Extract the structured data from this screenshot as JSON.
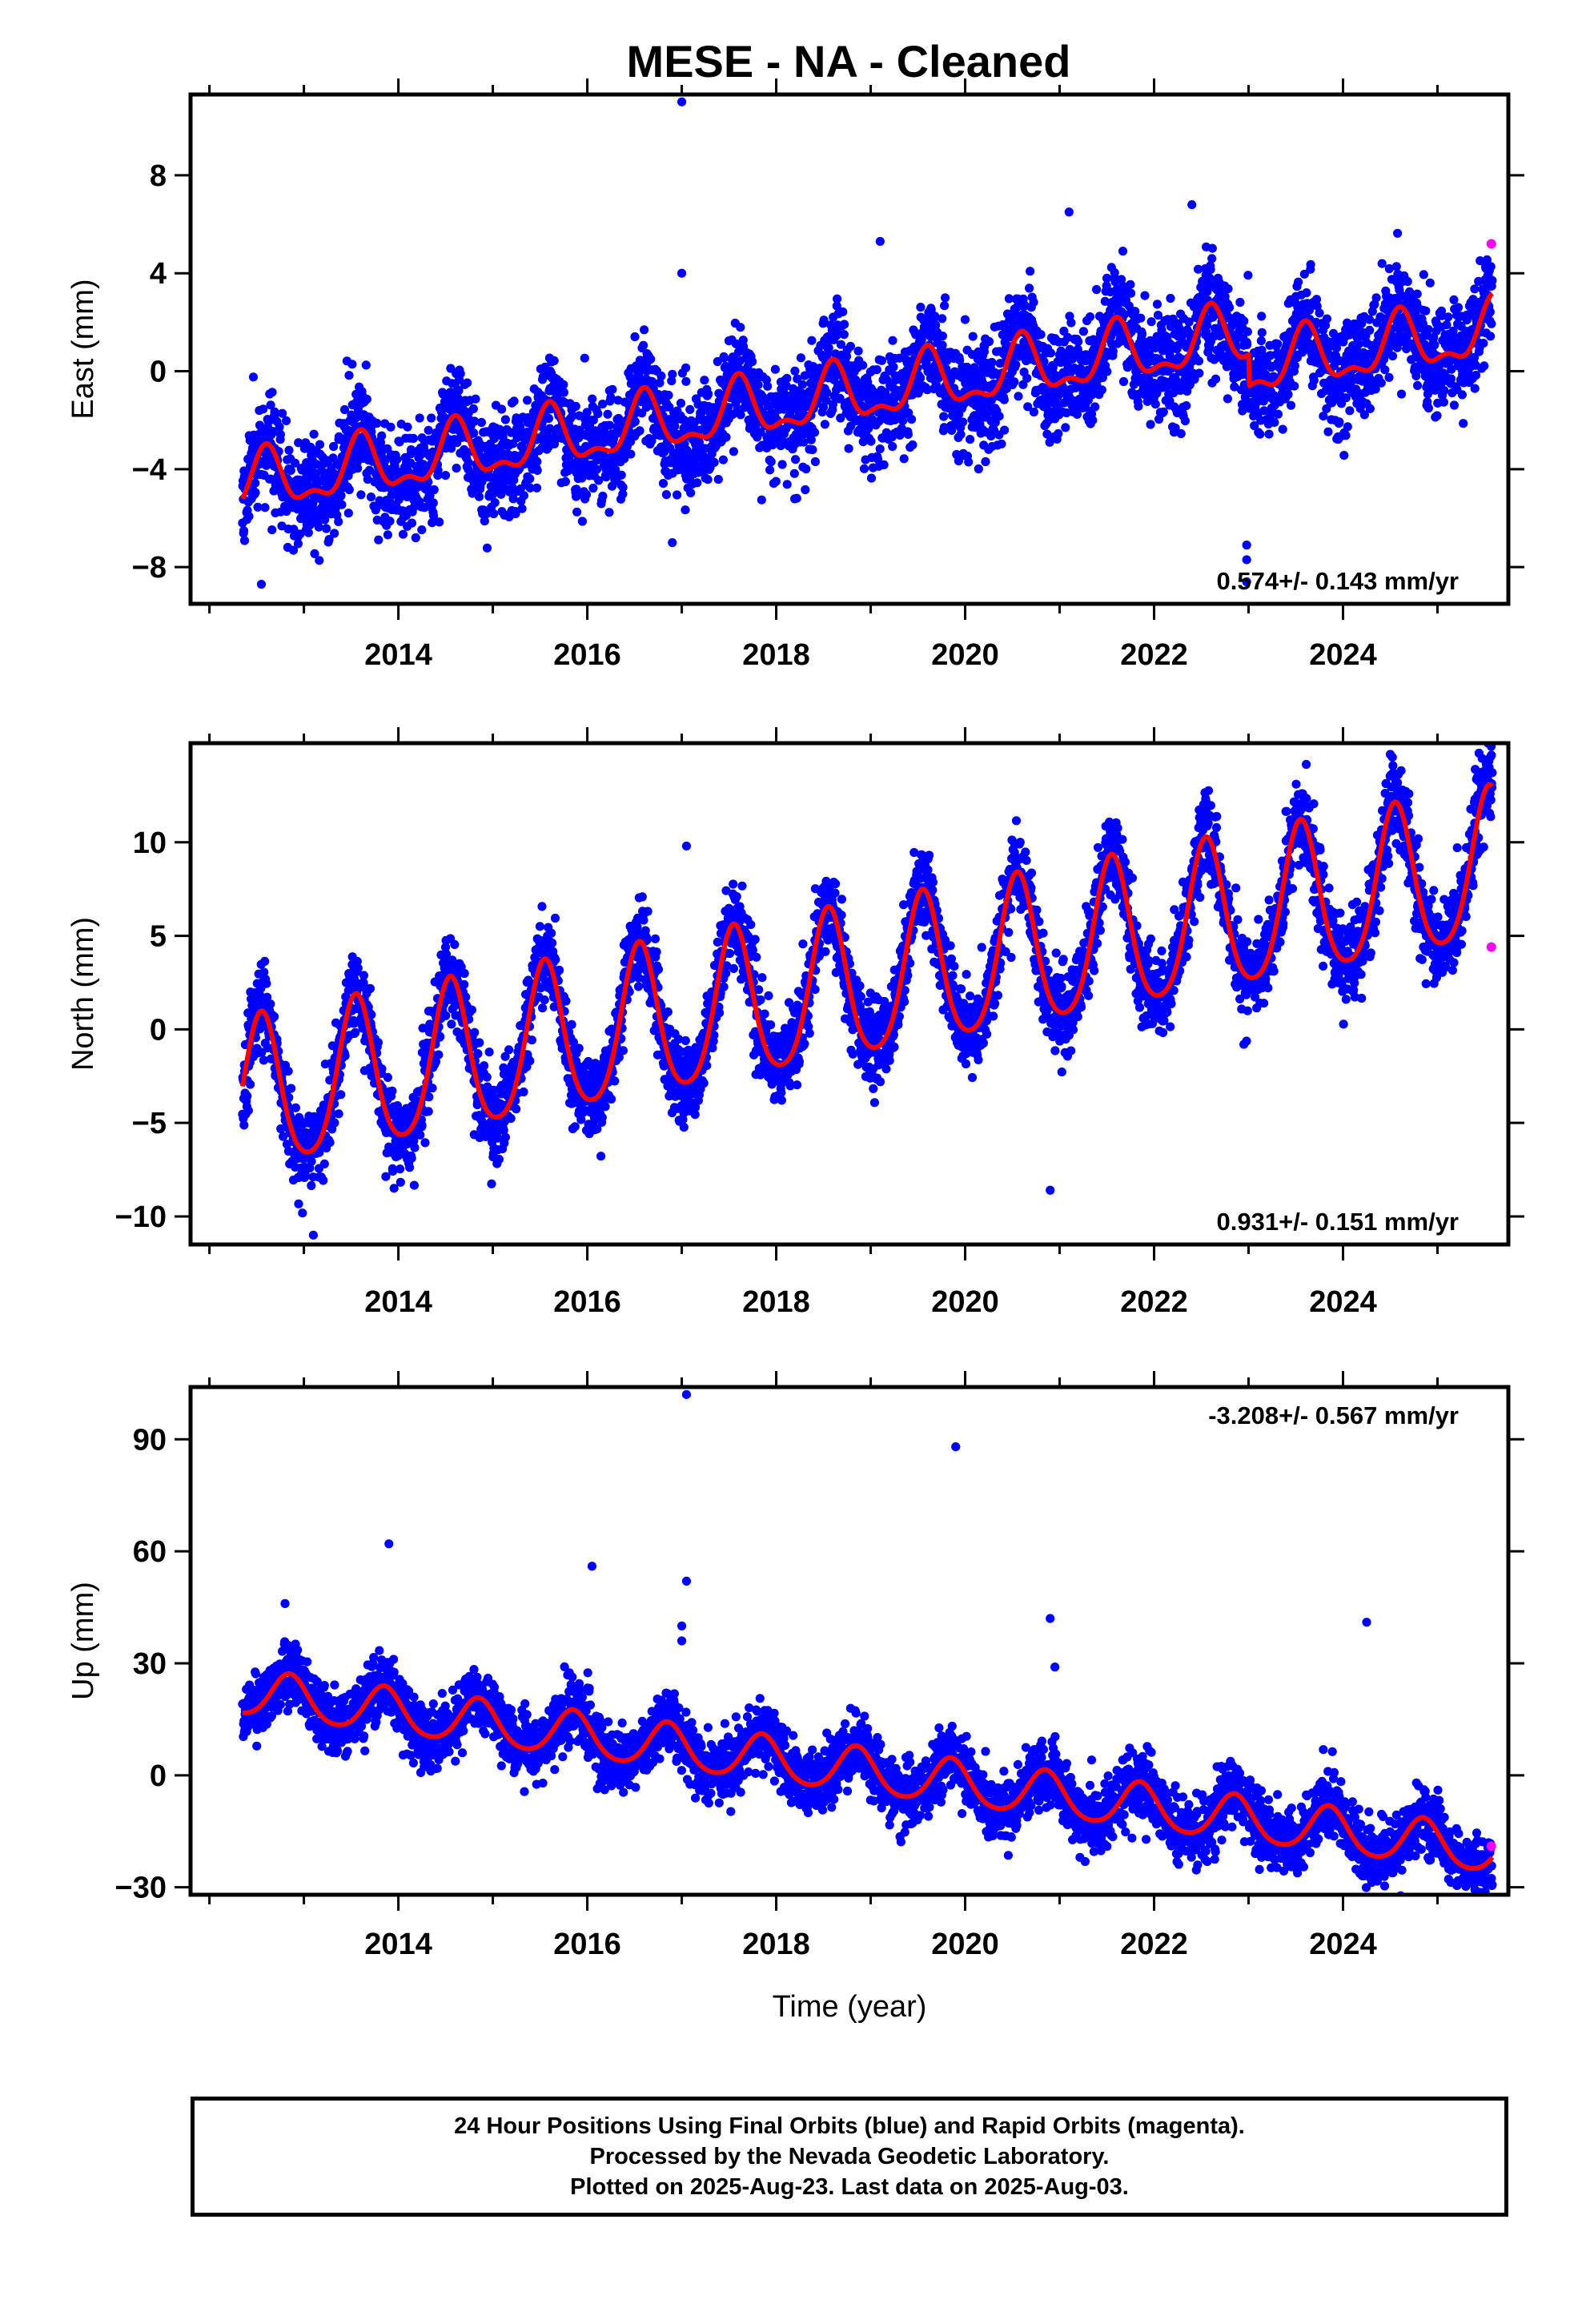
{
  "title": "MESE  - NA - Cleaned",
  "colors": {
    "final_orbits": "#0000ff",
    "rapid_orbits": "#ff00ff",
    "model_fit": "#ff0000",
    "frame": "#000000"
  },
  "chart_data": [
    {
      "type": "scatter",
      "id": "east",
      "ylabel": "East (mm)",
      "xlabel": "",
      "xlim": [
        2011.8,
        2025.75
      ],
      "ylim": [
        -9.5,
        11.3
      ],
      "xticks": [
        2014,
        2016,
        2018,
        2020,
        2022,
        2024
      ],
      "yticks": [
        -8,
        -4,
        0,
        4,
        8
      ],
      "grid": false,
      "rate_label": "0.574+/- 0.143 mm/yr",
      "rate_position": "bottom-right",
      "model": {
        "start_year": 2012.35,
        "end_year": 2025.58,
        "start": -4.7,
        "rate": 0.574,
        "annual_amp": 1.1,
        "annual_phase_peak": 0.6,
        "semiannual_amp": 0.5,
        "offsets": [
          {
            "year": 2023.0,
            "step": -1.3
          }
        ]
      },
      "scatter": {
        "start_year": 2012.35,
        "end_year": 2025.58,
        "noise": 1.05,
        "seed": 11
      },
      "outliers": [
        [
          2017.0,
          11.0
        ],
        [
          2017.0,
          4.0
        ],
        [
          2016.9,
          -7.0
        ],
        [
          2022.98,
          -7.1
        ],
        [
          2022.98,
          -7.7
        ],
        [
          2022.98,
          -8.6
        ],
        [
          2012.55,
          -8.7
        ],
        [
          2021.1,
          6.5
        ],
        [
          2022.4,
          6.8
        ],
        [
          2019.1,
          5.3
        ]
      ],
      "rapid_orbit_points": [
        [
          2025.57,
          5.2
        ]
      ],
      "series": [
        {
          "name": "Final Orbits (blue)",
          "color": "#0000ff"
        },
        {
          "name": "Rapid Orbits (magenta)",
          "color": "#ff00ff"
        }
      ]
    },
    {
      "type": "scatter",
      "id": "north",
      "ylabel": "North (mm)",
      "xlabel": "",
      "xlim": [
        2011.8,
        2025.75
      ],
      "ylim": [
        -11.5,
        15.3
      ],
      "xticks": [
        2014,
        2016,
        2018,
        2020,
        2022,
        2024
      ],
      "yticks": [
        -10,
        -5,
        0,
        5,
        10
      ],
      "grid": false,
      "rate_label": "0.931+/- 0.151 mm/yr",
      "rate_position": "bottom-right",
      "model": {
        "start_year": 2012.35,
        "end_year": 2025.58,
        "start": -3.8,
        "rate": 0.931,
        "annual_amp": 4.0,
        "annual_phase_peak": 0.55,
        "semiannual_amp": 0.6,
        "offsets": []
      },
      "scatter": {
        "start_year": 2012.35,
        "end_year": 2025.58,
        "noise": 1.15,
        "seed": 23
      },
      "outliers": [
        [
          2017.05,
          9.8
        ],
        [
          2020.9,
          -8.6
        ],
        [
          2022.95,
          -0.8
        ],
        [
          2024.5,
          14.7
        ],
        [
          2025.4,
          13.9
        ],
        [
          2013.1,
          -11.0
        ]
      ],
      "rapid_orbit_points": [
        [
          2025.57,
          4.4
        ]
      ],
      "series": [
        {
          "name": "Final Orbits (blue)",
          "color": "#0000ff"
        },
        {
          "name": "Rapid Orbits (magenta)",
          "color": "#ff00ff"
        }
      ]
    },
    {
      "type": "scatter",
      "id": "up",
      "ylabel": "Up (mm)",
      "xlabel": "Time (year)",
      "xlim": [
        2011.8,
        2025.75
      ],
      "ylim": [
        -32,
        104
      ],
      "xticks": [
        2014,
        2016,
        2018,
        2020,
        2022,
        2024
      ],
      "yticks": [
        -30,
        0,
        30,
        60,
        90
      ],
      "grid": false,
      "rate_label": "-3.208+/- 0.567 mm/yr",
      "rate_position": "top-right",
      "model": {
        "start_year": 2012.35,
        "end_year": 2025.58,
        "start": 22.0,
        "rate": -3.208,
        "annual_amp": 6.0,
        "annual_phase_peak": 0.85,
        "semiannual_amp": 0.8,
        "offsets": []
      },
      "scatter": {
        "start_year": 2012.35,
        "end_year": 2025.58,
        "noise": 4.2,
        "seed": 37
      },
      "outliers": [
        [
          2017.05,
          102.0
        ],
        [
          2019.9,
          88.0
        ],
        [
          2013.9,
          62.0
        ],
        [
          2016.05,
          56.0
        ],
        [
          2017.05,
          52.0
        ],
        [
          2020.9,
          42.0
        ],
        [
          2024.25,
          41.0
        ],
        [
          2017.0,
          40.0
        ],
        [
          2020.95,
          29.0
        ],
        [
          2012.8,
          46.0
        ],
        [
          2017.0,
          36.0
        ]
      ],
      "rapid_orbit_points": [
        [
          2025.57,
          -19.0
        ]
      ],
      "series": [
        {
          "name": "Final Orbits (blue)",
          "color": "#0000ff"
        },
        {
          "name": "Rapid Orbits (magenta)",
          "color": "#ff00ff"
        }
      ]
    }
  ],
  "footer": {
    "line1": "24 Hour Positions Using Final Orbits (blue) and Rapid Orbits (magenta).",
    "line2": "Processed by the Nevada Geodetic Laboratory.",
    "line3": "Plotted on 2025-Aug-23. Last data on 2025-Aug-03."
  }
}
